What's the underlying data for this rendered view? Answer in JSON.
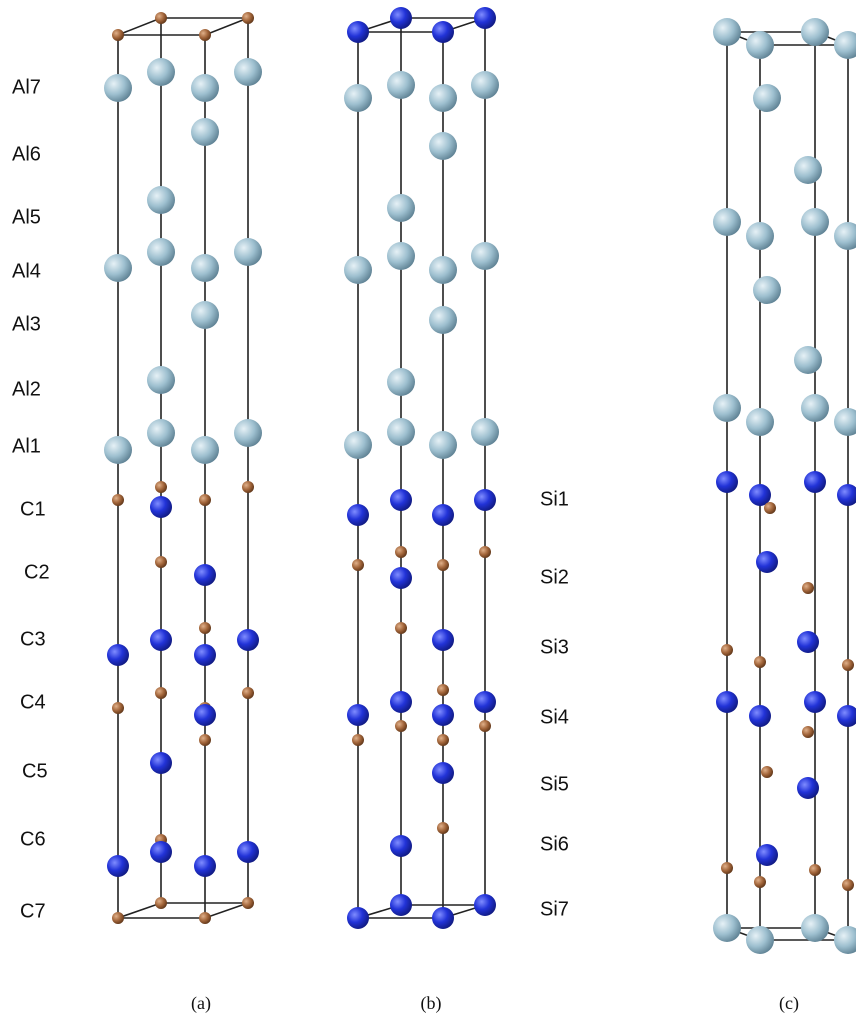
{
  "panels": [
    {
      "caption": "(a)",
      "labels": [
        "Al7",
        "Al6",
        "Al5",
        "Al4",
        "Al3",
        "Al2",
        "Al1",
        "C1",
        "C2",
        "C3",
        "C4",
        "C5",
        "C6",
        "C7"
      ]
    },
    {
      "caption": "(b)",
      "labels": [
        "Si1",
        "Si2",
        "Si3",
        "Si4",
        "Si5",
        "Si6",
        "Si7"
      ]
    },
    {
      "caption": "(c)"
    }
  ]
}
